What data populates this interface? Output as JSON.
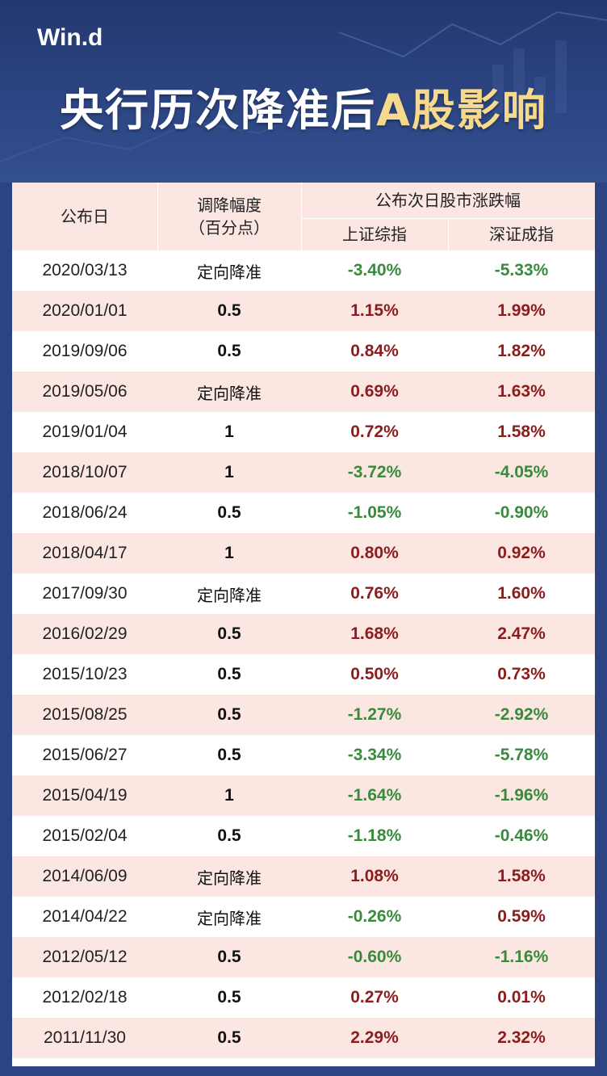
{
  "brand": "Win.d",
  "title": {
    "main": "央行历次降准后",
    "highlight": "A股影响"
  },
  "watermark": "Win.d",
  "colors": {
    "background": "#2c4482",
    "header_row": "#fbe6e2",
    "positive": "#8b1d1d",
    "negative": "#3a8a3e",
    "title_highlight": "#f6d98c"
  },
  "table": {
    "headers": {
      "date": "公布日",
      "cut_line1": "调降幅度",
      "cut_line2": "（百分点）",
      "group": "公布次日股市涨跌幅",
      "shanghai": "上证综指",
      "shenzhen": "深证成指"
    },
    "rows": [
      {
        "date": "2020/03/13",
        "cut": "定向降准",
        "sh": "-3.40%",
        "sz": "-5.33%"
      },
      {
        "date": "2020/01/01",
        "cut": "0.5",
        "sh": "1.15%",
        "sz": "1.99%"
      },
      {
        "date": "2019/09/06",
        "cut": "0.5",
        "sh": "0.84%",
        "sz": "1.82%"
      },
      {
        "date": "2019/05/06",
        "cut": "定向降准",
        "sh": "0.69%",
        "sz": "1.63%"
      },
      {
        "date": "2019/01/04",
        "cut": "1",
        "sh": "0.72%",
        "sz": "1.58%"
      },
      {
        "date": "2018/10/07",
        "cut": "1",
        "sh": "-3.72%",
        "sz": "-4.05%"
      },
      {
        "date": "2018/06/24",
        "cut": "0.5",
        "sh": "-1.05%",
        "sz": "-0.90%"
      },
      {
        "date": "2018/04/17",
        "cut": "1",
        "sh": "0.80%",
        "sz": "0.92%"
      },
      {
        "date": "2017/09/30",
        "cut": "定向降准",
        "sh": "0.76%",
        "sz": "1.60%"
      },
      {
        "date": "2016/02/29",
        "cut": "0.5",
        "sh": "1.68%",
        "sz": "2.47%"
      },
      {
        "date": "2015/10/23",
        "cut": "0.5",
        "sh": "0.50%",
        "sz": "0.73%"
      },
      {
        "date": "2015/08/25",
        "cut": "0.5",
        "sh": "-1.27%",
        "sz": "-2.92%"
      },
      {
        "date": "2015/06/27",
        "cut": "0.5",
        "sh": "-3.34%",
        "sz": "-5.78%"
      },
      {
        "date": "2015/04/19",
        "cut": "1",
        "sh": "-1.64%",
        "sz": "-1.96%"
      },
      {
        "date": "2015/02/04",
        "cut": "0.5",
        "sh": "-1.18%",
        "sz": "-0.46%"
      },
      {
        "date": "2014/06/09",
        "cut": "定向降准",
        "sh": "1.08%",
        "sz": "1.58%"
      },
      {
        "date": "2014/04/22",
        "cut": "定向降准",
        "sh": "-0.26%",
        "sz": "0.59%"
      },
      {
        "date": "2012/05/12",
        "cut": "0.5",
        "sh": "-0.60%",
        "sz": "-1.16%"
      },
      {
        "date": "2012/02/18",
        "cut": "0.5",
        "sh": "0.27%",
        "sz": "0.01%"
      },
      {
        "date": "2011/11/30",
        "cut": "0.5",
        "sh": "2.29%",
        "sz": "2.32%"
      }
    ]
  }
}
